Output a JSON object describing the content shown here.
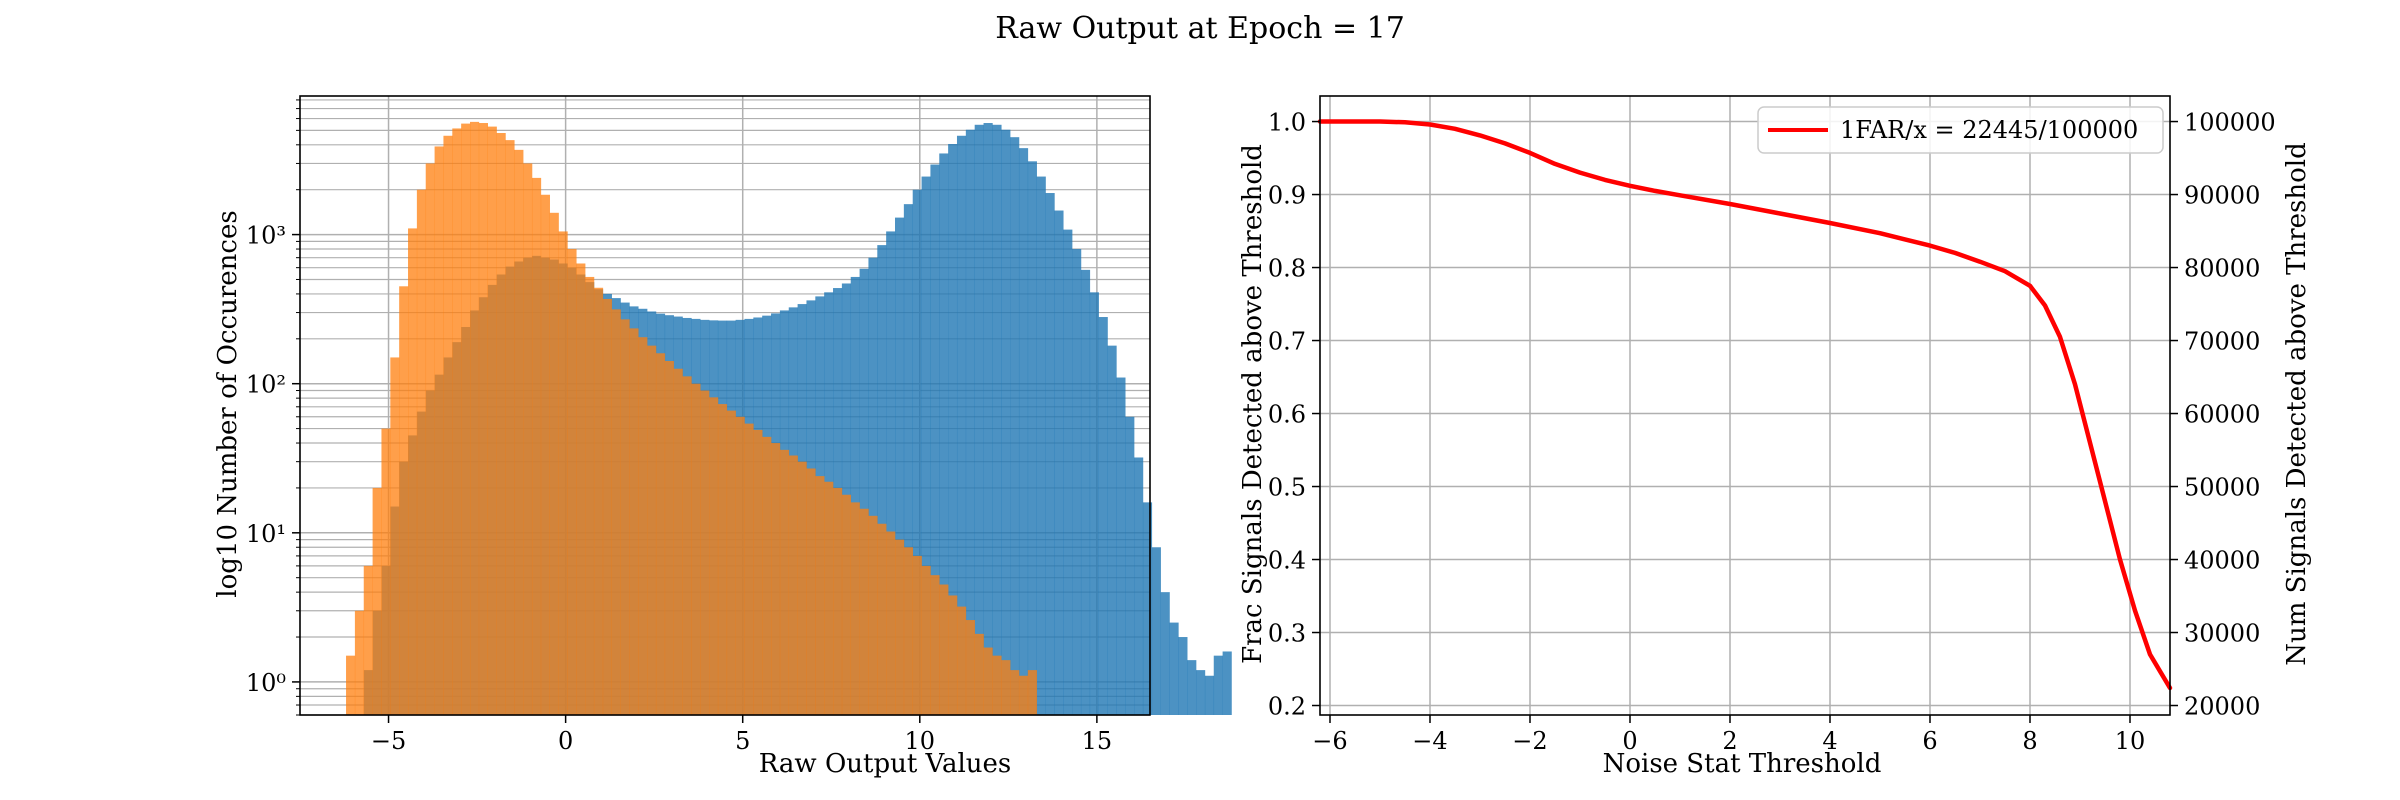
{
  "figure": {
    "title": "Raw Output at Epoch = 17"
  },
  "colors": {
    "signal": "#1f77b4",
    "noise": "#ff7f0e",
    "curve": "#ff0000",
    "grid": "#b0b0b0"
  },
  "chart_data": [
    {
      "type": "histogram",
      "xlabel": "Raw Output Values",
      "ylabel": "log10 Number of Occurences",
      "xlim": [
        -7.5,
        16.5
      ],
      "ylim": [
        0.6,
        8500
      ],
      "yscale": "log",
      "grid": true,
      "xticks": [
        -5,
        0,
        5,
        10,
        15
      ],
      "xtick_labels": [
        "−5",
        "0",
        "5",
        "10",
        "15"
      ],
      "yticks": [
        1,
        10,
        100,
        1000
      ],
      "ytick_labels": [
        "10⁰",
        "10¹",
        "10²",
        "10³"
      ],
      "series": [
        {
          "role": "signal",
          "color": "#1f77b4",
          "x_start": -5.7,
          "bin_width": 0.25,
          "counts": [
            1.2,
            3,
            6,
            15,
            30,
            45,
            65,
            90,
            115,
            150,
            190,
            240,
            310,
            380,
            460,
            540,
            610,
            660,
            700,
            720,
            700,
            680,
            640,
            600,
            540,
            480,
            430,
            400,
            375,
            350,
            330,
            318,
            305,
            295,
            288,
            282,
            276,
            272,
            268,
            266,
            265,
            265,
            268,
            272,
            278,
            286,
            296,
            310,
            325,
            342,
            362,
            385,
            410,
            438,
            470,
            520,
            590,
            700,
            850,
            1050,
            1300,
            1600,
            2000,
            2450,
            2950,
            3500,
            4050,
            4600,
            5050,
            5450,
            5600,
            5450,
            5050,
            4500,
            3800,
            3100,
            2450,
            1900,
            1450,
            1080,
            800,
            580,
            410,
            280,
            180,
            110,
            60,
            32,
            16,
            8,
            4,
            2.5,
            2,
            1.4,
            1.2,
            1.1,
            1.5,
            1.6
          ]
        },
        {
          "role": "noise",
          "color": "#ff7f0e",
          "x_start": -6.2,
          "bin_width": 0.25,
          "counts": [
            1.5,
            3,
            6,
            20,
            50,
            150,
            450,
            1100,
            2000,
            3000,
            3900,
            4600,
            5150,
            5550,
            5700,
            5600,
            5300,
            4800,
            4300,
            3700,
            3000,
            2400,
            1850,
            1400,
            1050,
            800,
            640,
            520,
            440,
            370,
            315,
            270,
            235,
            205,
            180,
            160,
            142,
            126,
            112,
            100,
            90,
            81,
            73,
            66,
            60,
            54,
            49,
            44,
            40,
            36,
            33,
            30,
            27,
            24,
            22,
            20,
            18,
            16,
            14.5,
            13,
            11.5,
            10.2,
            9,
            8,
            7,
            6,
            5.2,
            4.5,
            3.8,
            3.2,
            2.6,
            2.1,
            1.7,
            1.5,
            1.4,
            1.2,
            1.1,
            1.2
          ]
        }
      ]
    },
    {
      "type": "line",
      "xlabel": "Noise Stat Threshold",
      "ylabel": "Frac Signals Detected above Threshold",
      "y2label": "Num Signals Detected above Threshold",
      "xlim": [
        -6.2,
        10.8
      ],
      "ylim": [
        0.187,
        1.035
      ],
      "y2lim": [
        18700,
        103500
      ],
      "grid": true,
      "xticks": [
        -6,
        -4,
        -2,
        0,
        2,
        4,
        6,
        8,
        10
      ],
      "xtick_labels": [
        "−6",
        "−4",
        "−2",
        "0",
        "2",
        "4",
        "6",
        "8",
        "10"
      ],
      "yticks": [
        0.2,
        0.3,
        0.4,
        0.5,
        0.6,
        0.7,
        0.8,
        0.9,
        1.0
      ],
      "ytick_labels": [
        "0.2",
        "0.3",
        "0.4",
        "0.5",
        "0.6",
        "0.7",
        "0.8",
        "0.9",
        "1.0"
      ],
      "y2ticks": [
        20000,
        30000,
        40000,
        50000,
        60000,
        70000,
        80000,
        90000,
        100000
      ],
      "y2tick_labels": [
        "20000",
        "30000",
        "40000",
        "50000",
        "60000",
        "70000",
        "80000",
        "90000",
        "100000"
      ],
      "legend": {
        "label": "1FAR/x = 22445/100000",
        "placement": "upper right"
      },
      "series": [
        {
          "name": "1FAR/x = 22445/100000",
          "color": "#ff0000",
          "x": [
            -6.2,
            -5,
            -4.5,
            -4,
            -3.5,
            -3,
            -2.5,
            -2,
            -1.5,
            -1,
            -0.5,
            0,
            0.5,
            1,
            2,
            3,
            4,
            5,
            6,
            6.5,
            7,
            7.5,
            8,
            8.3,
            8.6,
            8.9,
            9.2,
            9.5,
            9.8,
            10.1,
            10.4,
            10.8
          ],
          "y": [
            1.0,
            1.0,
            0.999,
            0.996,
            0.99,
            0.981,
            0.97,
            0.957,
            0.942,
            0.93,
            0.92,
            0.912,
            0.905,
            0.899,
            0.887,
            0.874,
            0.861,
            0.847,
            0.83,
            0.82,
            0.808,
            0.795,
            0.775,
            0.748,
            0.705,
            0.64,
            0.56,
            0.48,
            0.4,
            0.33,
            0.27,
            0.224
          ]
        }
      ]
    }
  ]
}
